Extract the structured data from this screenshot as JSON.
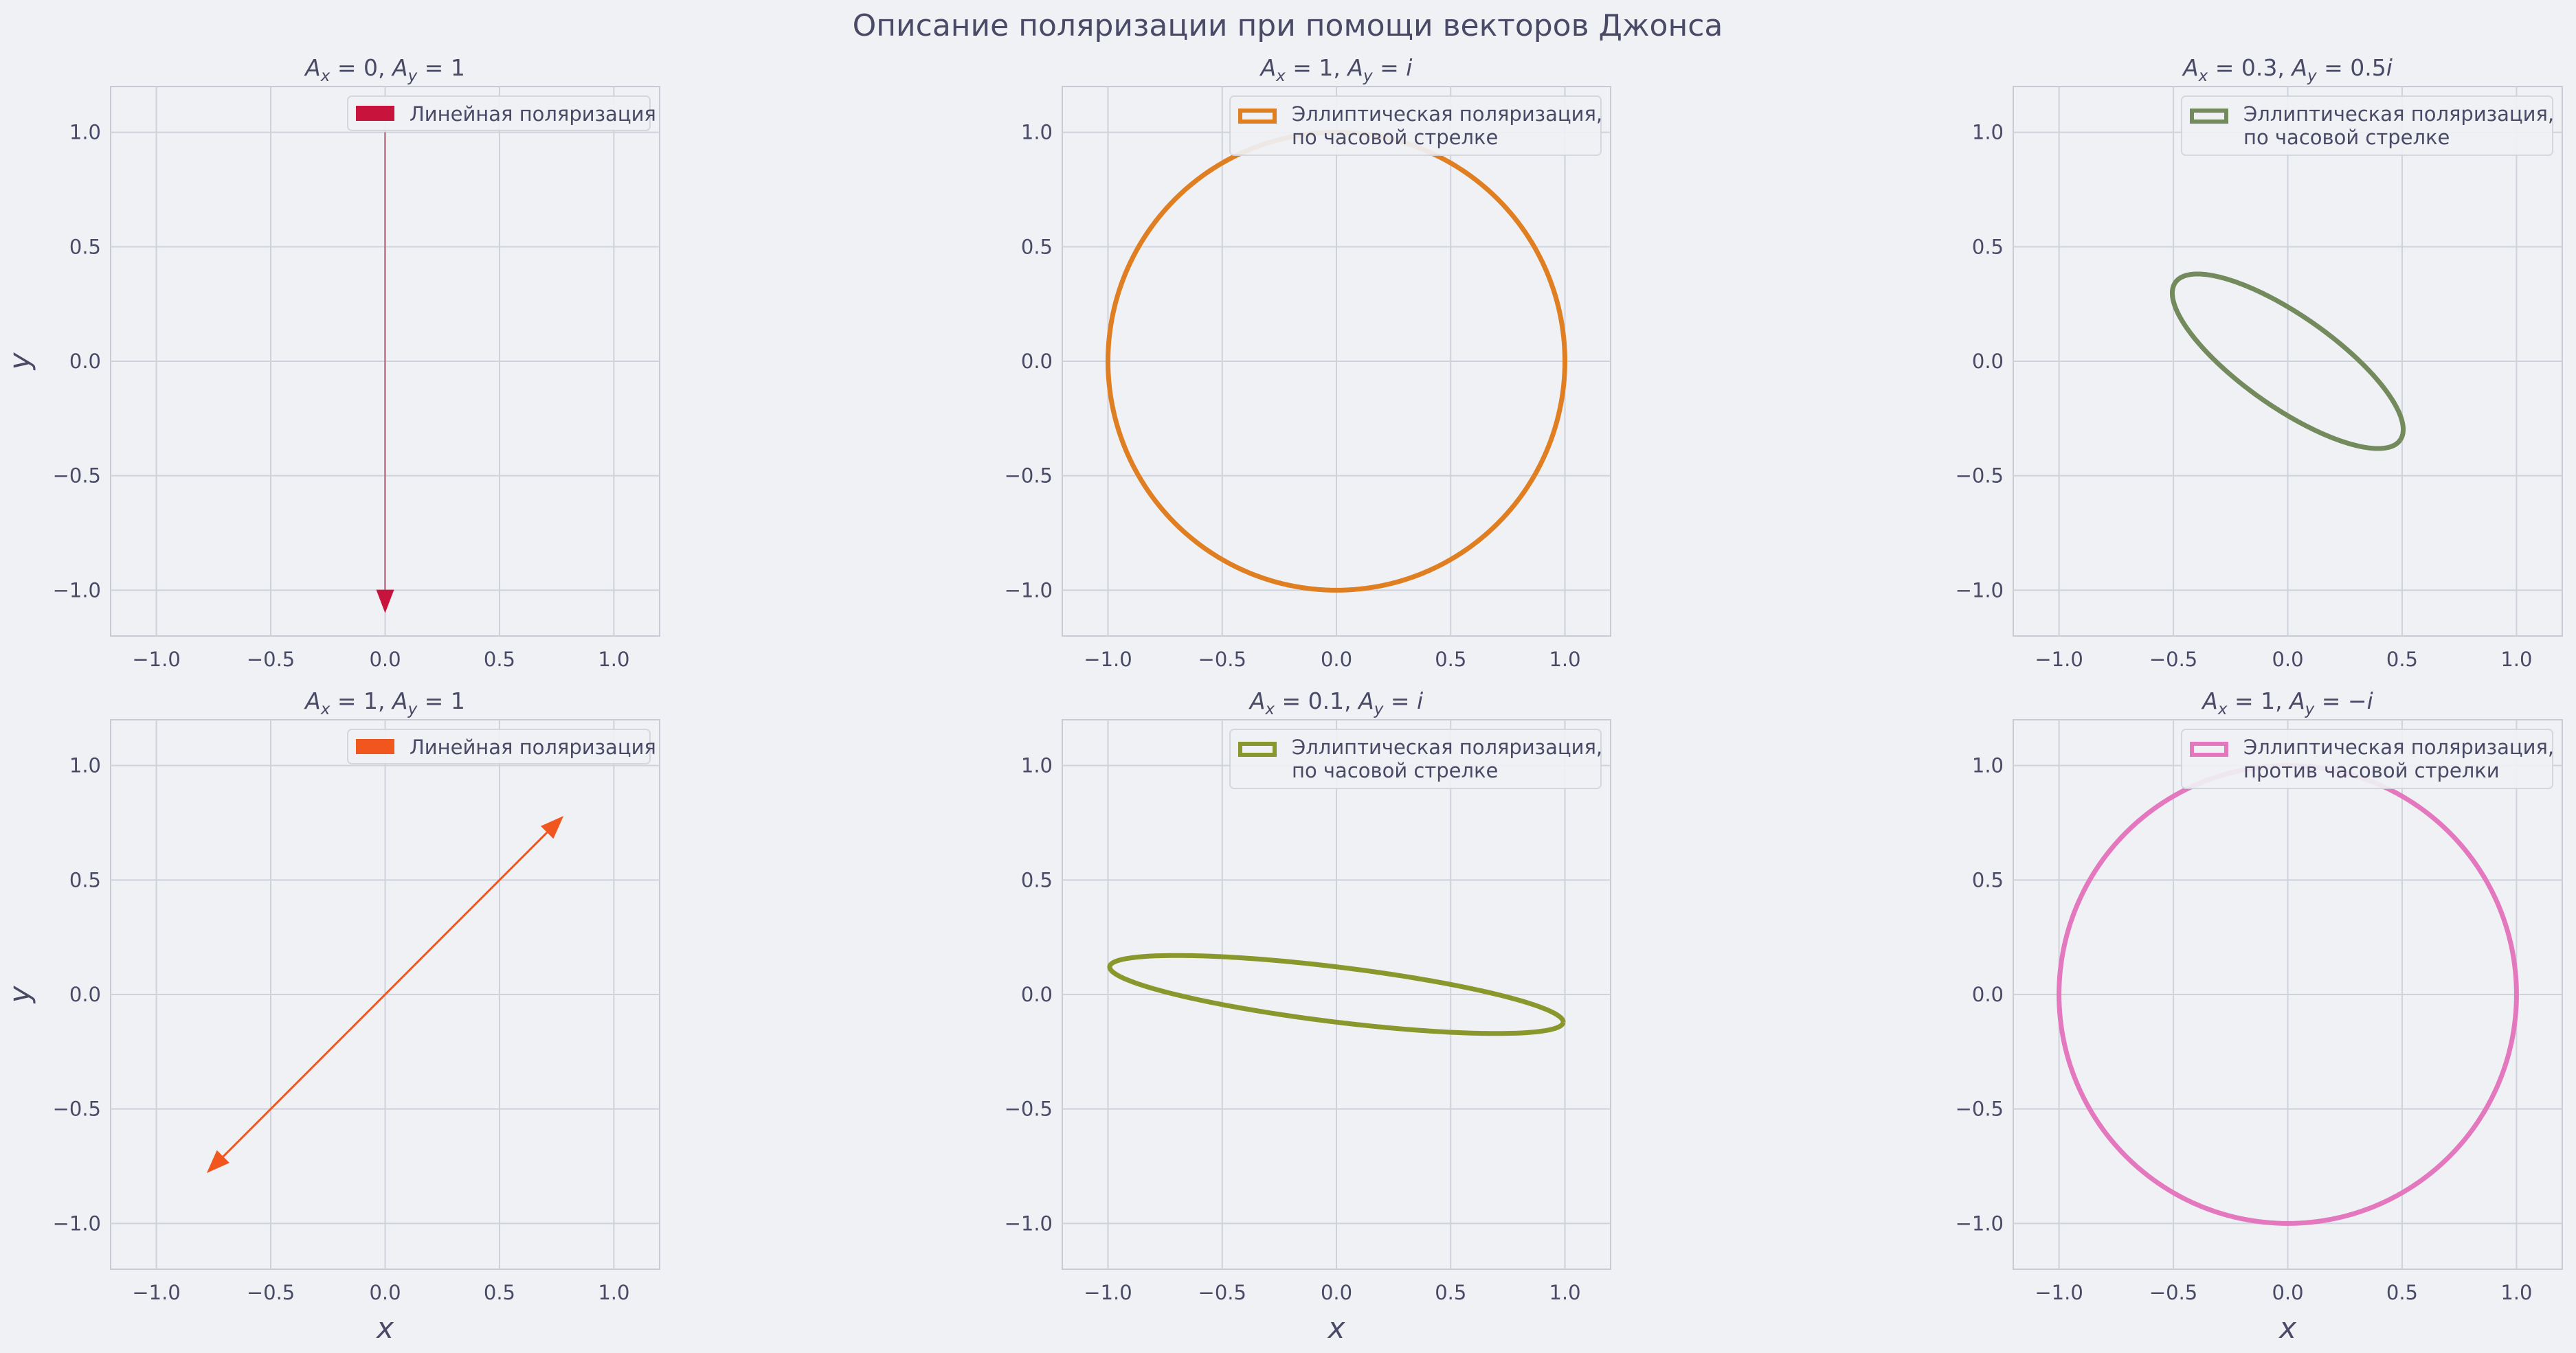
{
  "figure": {
    "title": "Описание поляризации при помощи векторов Джонса",
    "background": "#eff1f5"
  },
  "chart_data": [
    {
      "type": "line",
      "title": "A_x = 0, A_y = 1",
      "title_parts": {
        "ax": "0",
        "ay": "1"
      },
      "xlabel": "",
      "ylabel": "y",
      "xlim": [
        -1.2,
        1.2
      ],
      "ylim": [
        -1.2,
        1.2
      ],
      "xticks": [
        -1.0,
        -0.5,
        0.0,
        0.5,
        1.0
      ],
      "yticks": [
        -1.0,
        -0.5,
        0.0,
        0.5,
        1.0
      ],
      "tick_labels": [
        "−1.0",
        "−0.5",
        "0.0",
        "0.5",
        "1.0"
      ],
      "grid": true,
      "legend_position": "top-right",
      "shape": "arrow",
      "jones": {
        "ax_re": 0,
        "ax_im": 0,
        "ay_re": 1,
        "ay_im": 0
      },
      "arrow": {
        "from": [
          0,
          1
        ],
        "to": [
          0,
          -1.1
        ]
      },
      "color": "#c8143c",
      "legend": {
        "label": "Линейная поляризация",
        "marker": "filled"
      }
    },
    {
      "type": "line",
      "title": "A_x = 1, A_y = i",
      "title_parts": {
        "ax": "1",
        "ay": "i"
      },
      "xlabel": "",
      "ylabel": "",
      "xlim": [
        -1.2,
        1.2
      ],
      "ylim": [
        -1.2,
        1.2
      ],
      "xticks": [
        -1.0,
        -0.5,
        0.0,
        0.5,
        1.0
      ],
      "yticks": [
        -1.0,
        -0.5,
        0.0,
        0.5,
        1.0
      ],
      "tick_labels": [
        "−1.0",
        "−0.5",
        "0.0",
        "0.5",
        "1.0"
      ],
      "grid": true,
      "legend_position": "top-right",
      "shape": "ellipse",
      "jones": {
        "ax_re": 1,
        "ax_im": 0,
        "ay_re": 0,
        "ay_im": 1
      },
      "color": "#e07e22",
      "legend": {
        "label": [
          "Эллиптическая поляризация,",
          " по часовой стрелке"
        ],
        "marker": "outline"
      }
    },
    {
      "type": "line",
      "title": "A_x = 0.3, A_y = 0.5i",
      "title_parts": {
        "ax": "0.3",
        "ay": "0.5i"
      },
      "xlabel": "",
      "ylabel": "",
      "xlim": [
        -1.2,
        1.2
      ],
      "ylim": [
        -1.2,
        1.2
      ],
      "xticks": [
        -1.0,
        -0.5,
        0.0,
        0.5,
        1.0
      ],
      "yticks": [
        -1.0,
        -0.5,
        0.0,
        0.5,
        1.0
      ],
      "tick_labels": [
        "−1.0",
        "−0.5",
        "0.0",
        "0.5",
        "1.0"
      ],
      "grid": true,
      "legend_position": "top-right",
      "shape": "ellipse",
      "jones": {
        "ax_re": 0.3,
        "ax_im": 0,
        "ay_re": 0,
        "ay_im": 0.5
      },
      "ellipse": {
        "a": 0.6,
        "b": 0.2,
        "angle_deg": -35
      },
      "color": "#738a5c",
      "legend": {
        "label": [
          "Эллиптическая поляризация,",
          " по часовой стрелке"
        ],
        "marker": "outline"
      }
    },
    {
      "type": "line",
      "title": "A_x = 1, A_y = 1",
      "title_parts": {
        "ax": "1",
        "ay": "1"
      },
      "xlabel": "x",
      "ylabel": "y",
      "xlim": [
        -1.2,
        1.2
      ],
      "ylim": [
        -1.2,
        1.2
      ],
      "xticks": [
        -1.0,
        -0.5,
        0.0,
        0.5,
        1.0
      ],
      "yticks": [
        -1.0,
        -0.5,
        0.0,
        0.5,
        1.0
      ],
      "tick_labels": [
        "−1.0",
        "−0.5",
        "0.0",
        "0.5",
        "1.0"
      ],
      "grid": true,
      "legend_position": "top-right",
      "shape": "double-arrow",
      "jones": {
        "ax_re": 1,
        "ax_im": 0,
        "ay_re": 1,
        "ay_im": 0
      },
      "arrow": {
        "from": [
          -0.78,
          -0.78
        ],
        "to": [
          0.78,
          0.78
        ]
      },
      "color": "#f0561e",
      "legend": {
        "label": "Линейная поляризация",
        "marker": "filled"
      }
    },
    {
      "type": "line",
      "title": "A_x = 0.1, A_y = i",
      "title_parts": {
        "ax": "0.1",
        "ay": "i"
      },
      "xlabel": "x",
      "ylabel": "",
      "xlim": [
        -1.2,
        1.2
      ],
      "ylim": [
        -1.2,
        1.2
      ],
      "xticks": [
        -1.0,
        -0.5,
        0.0,
        0.5,
        1.0
      ],
      "yticks": [
        -1.0,
        -0.5,
        0.0,
        0.5,
        1.0
      ],
      "tick_labels": [
        "−1.0",
        "−0.5",
        "0.0",
        "0.5",
        "1.0"
      ],
      "grid": true,
      "legend_position": "top-right",
      "shape": "ellipse",
      "jones": {
        "ax_re": 0.1,
        "ax_im": 0,
        "ay_re": 0,
        "ay_im": 1
      },
      "ellipse": {
        "a": 1.0,
        "b": 0.12,
        "angle_deg": -7
      },
      "color": "#8a972d",
      "legend": {
        "label": [
          "Эллиптическая поляризация,",
          " по часовой стрелке"
        ],
        "marker": "outline"
      }
    },
    {
      "type": "line",
      "title": "A_x = 1, A_y = −i",
      "title_parts": {
        "ax": "1",
        "ay": "−i"
      },
      "xlabel": "x",
      "ylabel": "",
      "xlim": [
        -1.2,
        1.2
      ],
      "ylim": [
        -1.2,
        1.2
      ],
      "xticks": [
        -1.0,
        -0.5,
        0.0,
        0.5,
        1.0
      ],
      "yticks": [
        -1.0,
        -0.5,
        0.0,
        0.5,
        1.0
      ],
      "tick_labels": [
        "−1.0",
        "−0.5",
        "0.0",
        "0.5",
        "1.0"
      ],
      "grid": true,
      "legend_position": "top-right",
      "shape": "ellipse",
      "jones": {
        "ax_re": 1,
        "ax_im": 0,
        "ay_re": 0,
        "ay_im": -1
      },
      "color": "#e478be",
      "legend": {
        "label": [
          "Эллиптическая поляризация,",
          " против часовой стрелки"
        ],
        "marker": "outline"
      }
    }
  ]
}
